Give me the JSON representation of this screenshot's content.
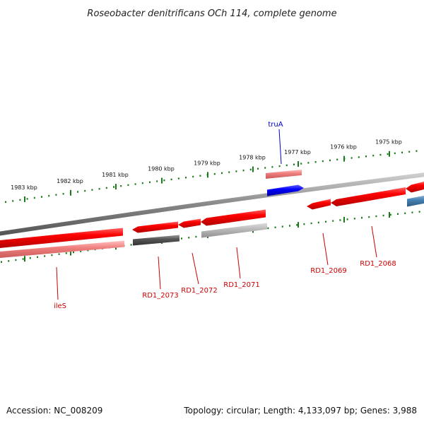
{
  "title": "Roseobacter denitrificans OCh 114, complete genome",
  "colors": {
    "gene_red": "#ff0000",
    "gene_pink": "#f08080",
    "gene_blue": "#0000ff",
    "gene_steel": "#4682b4",
    "gene_dark": "#555555",
    "gene_light": "#bbbbbb",
    "backbone": "#888888",
    "tick": "#1a7a1a",
    "label_red": "#cc0000",
    "label_blue": "#0000cc"
  },
  "ruler_ticks": [
    "1983 kbp",
    "1982 kbp",
    "1981 kbp",
    "1980 kbp",
    "1979 kbp",
    "1978 kbp",
    "1977 kbp",
    "1976 kbp",
    "1975 kbp"
  ],
  "genes": [
    {
      "label": "truA",
      "track": "forward-outer",
      "color": "blue",
      "labeled": true
    },
    {
      "label": "RD1_2068",
      "track": "forward",
      "color": "red",
      "labeled": true
    },
    {
      "label": "RD1_2069",
      "track": "forward",
      "color": "red",
      "labeled": true
    },
    {
      "label": "RD1_2071",
      "track": "reverse",
      "color": "red",
      "labeled": true
    },
    {
      "label": "RD1_2072",
      "track": "reverse",
      "color": "red",
      "labeled": true
    },
    {
      "label": "RD1_2073",
      "track": "reverse",
      "color": "red",
      "labeled": true
    },
    {
      "label": "ileS",
      "track": "reverse",
      "color": "red",
      "labeled": true
    }
  ],
  "footer": {
    "accession": "Accession: NC_008209",
    "summary": "Topology: circular; Length: 4,133,097 bp; Genes: 3,988"
  }
}
